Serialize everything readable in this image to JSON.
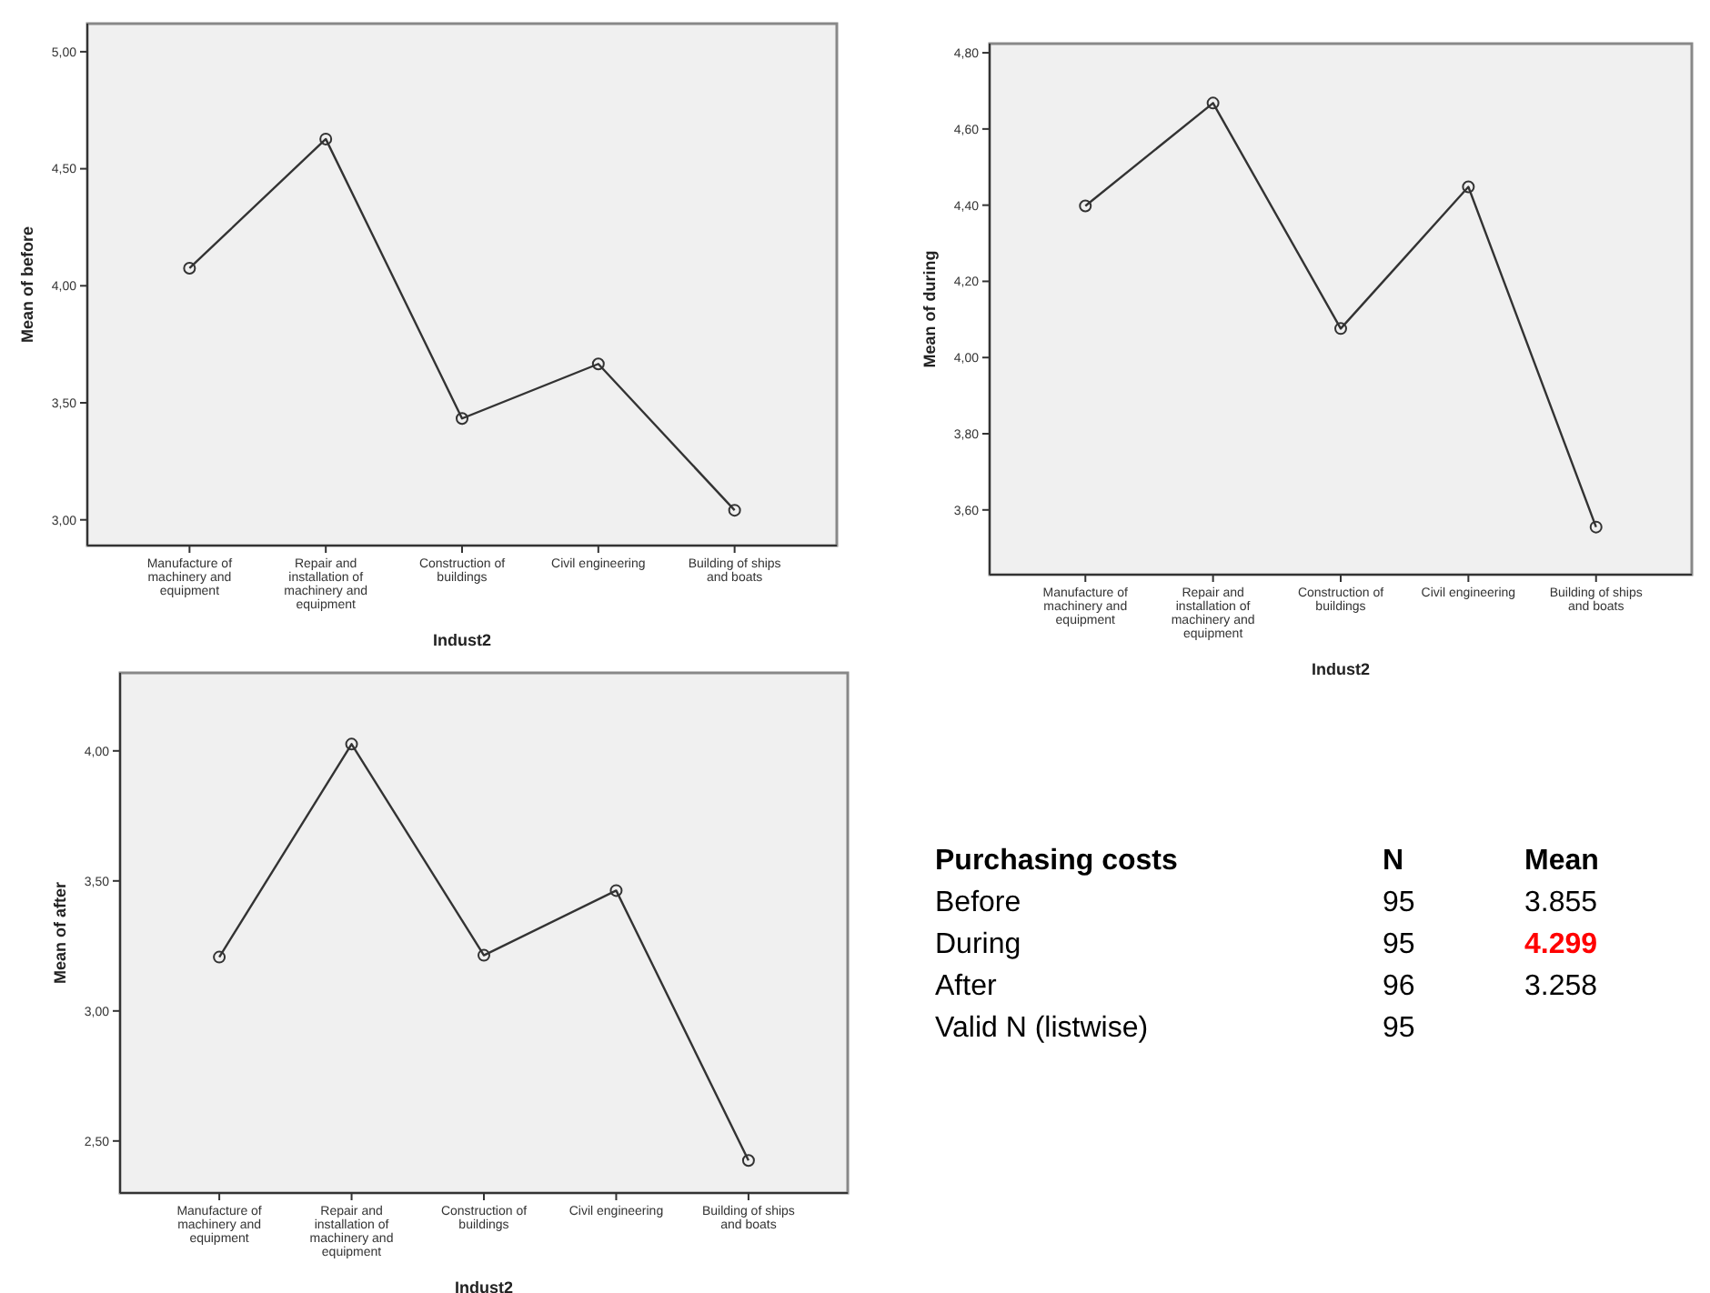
{
  "chart_data": [
    {
      "type": "line",
      "xlabel": "Indust2",
      "ylabel": "Mean of before",
      "categories": [
        "Manufacture of machinery and equipment",
        "Repair and installation of machinery and equipment",
        "Construction of buildings",
        "Civil engineering",
        "Building of ships and boats"
      ],
      "values": [
        4.075,
        4.627,
        3.433,
        3.666,
        3.041
      ],
      "color": "#333333",
      "marker": "circle",
      "ylim": [
        2.89,
        5.12
      ],
      "yticks": [
        {
          "value": 3,
          "label": "3,00"
        },
        {
          "value": 3.5,
          "label": "3,50"
        },
        {
          "value": 4,
          "label": "4,00"
        },
        {
          "value": 4.5,
          "label": "4,50"
        },
        {
          "value": 5,
          "label": "5,00"
        }
      ]
    },
    {
      "type": "line",
      "xlabel": "Indust2",
      "ylabel": "Mean of during",
      "categories": [
        "Manufacture of machinery and equipment",
        "Repair and installation of machinery and equipment",
        "Construction of buildings",
        "Civil engineering",
        "Building of ships and boats"
      ],
      "values": [
        4.398,
        4.668,
        4.076,
        4.448,
        3.555
      ],
      "color": "#333333",
      "marker": "circle",
      "ylim": [
        3.43,
        4.824
      ],
      "yticks": [
        {
          "value": 3.6,
          "label": "3,60"
        },
        {
          "value": 3.8,
          "label": "3,80"
        },
        {
          "value": 4,
          "label": "4,00"
        },
        {
          "value": 4.2,
          "label": "4,20"
        },
        {
          "value": 4.4,
          "label": "4,40"
        },
        {
          "value": 4.6,
          "label": "4,60"
        },
        {
          "value": 4.8,
          "label": "4,80"
        }
      ]
    },
    {
      "type": "line",
      "xlabel": "Indust2",
      "ylabel": "Mean of after",
      "categories": [
        "Manufacture of machinery and equipment",
        "Repair and installation of machinery and equipment",
        "Construction of buildings",
        "Civil engineering",
        "Building of ships and boats"
      ],
      "values": [
        3.207,
        4.026,
        3.214,
        3.463,
        2.425
      ],
      "color": "#333333",
      "marker": "circle",
      "ylim": [
        2.3,
        4.3
      ],
      "yticks": [
        {
          "value": 2.5,
          "label": "2,50"
        },
        {
          "value": 3,
          "label": "3,00"
        },
        {
          "value": 3.5,
          "label": "3,50"
        },
        {
          "value": 4,
          "label": "4,00"
        }
      ]
    },
    {
      "type": "other",
      "title": "Purchasing costs",
      "data_labels": true,
      "categories": [
        "Before",
        "During",
        "After",
        "Valid N (listwise)"
      ],
      "series": [
        {
          "name": "N",
          "color": "#000000",
          "values": [
            95,
            95,
            96,
            95
          ]
        },
        {
          "name": "Mean",
          "color": "#000000",
          "colors": [
            "#000000",
            "#ff0000",
            "#000000",
            null
          ],
          "values": [
            3.855,
            4.299,
            3.258,
            null
          ]
        }
      ]
    }
  ]
}
